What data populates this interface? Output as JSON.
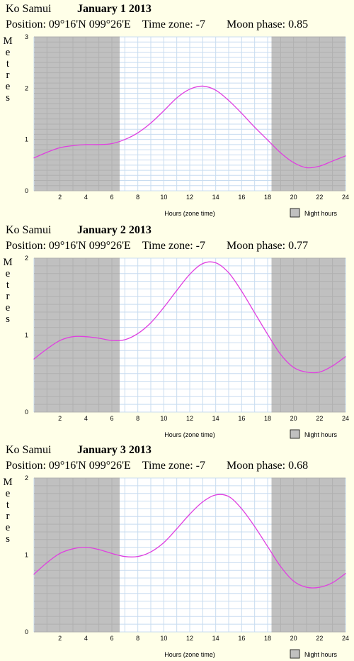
{
  "charts": [
    {
      "location": "Ko Samui",
      "date": "January 1 2013",
      "position": "Position: 09°16'N 099°26'E",
      "timezone": "Time zone: -7",
      "moon_phase": "Moon phase: 0.85",
      "ylabel": "Metres",
      "xlabel": "Hours (zone time)",
      "legend": "Night hours",
      "yticks": [
        "0",
        "1",
        "2",
        "3"
      ],
      "xticks": [
        "2",
        "4",
        "6",
        "8",
        "10",
        "12",
        "14",
        "16",
        "18",
        "20",
        "22",
        "24"
      ],
      "chart_data": {
        "type": "line",
        "ylim": [
          0,
          3
        ],
        "xlim": [
          0,
          24
        ],
        "night_hours": [
          [
            0,
            6.6
          ],
          [
            18.3,
            24
          ]
        ],
        "line_color": "#e040e0",
        "x": [
          0,
          1,
          2,
          3,
          4,
          5,
          6,
          7,
          8,
          9,
          10,
          11,
          12,
          13,
          14,
          15,
          16,
          17,
          18,
          19,
          20,
          21,
          22,
          23,
          24
        ],
        "values": [
          0.64,
          0.75,
          0.84,
          0.88,
          0.9,
          0.9,
          0.92,
          1.0,
          1.13,
          1.32,
          1.56,
          1.81,
          1.98,
          2.04,
          1.96,
          1.76,
          1.51,
          1.24,
          0.99,
          0.74,
          0.55,
          0.45,
          0.48,
          0.58,
          0.68
        ]
      }
    },
    {
      "location": "Ko Samui",
      "date": "January 2 2013",
      "position": "Position: 09°16'N 099°26'E",
      "timezone": "Time zone: -7",
      "moon_phase": "Moon phase: 0.77",
      "ylabel": "Metres",
      "xlabel": "Hours (zone time)",
      "legend": "Night hours",
      "yticks": [
        "0",
        "1",
        "2"
      ],
      "xticks": [
        "2",
        "4",
        "6",
        "8",
        "10",
        "12",
        "14",
        "16",
        "18",
        "20",
        "22",
        "24"
      ],
      "chart_data": {
        "type": "line",
        "ylim": [
          0,
          2
        ],
        "xlim": [
          0,
          24
        ],
        "night_hours": [
          [
            0,
            6.6
          ],
          [
            18.3,
            24
          ]
        ],
        "line_color": "#e040e0",
        "x": [
          0,
          1,
          2,
          3,
          4,
          5,
          6,
          7,
          8,
          9,
          10,
          11,
          12,
          13,
          14,
          15,
          16,
          17,
          18,
          19,
          20,
          21,
          22,
          23,
          24
        ],
        "values": [
          0.69,
          0.82,
          0.93,
          0.98,
          0.98,
          0.96,
          0.93,
          0.94,
          1.02,
          1.16,
          1.36,
          1.58,
          1.79,
          1.93,
          1.94,
          1.81,
          1.57,
          1.29,
          1.01,
          0.75,
          0.58,
          0.52,
          0.52,
          0.6,
          0.72
        ]
      }
    },
    {
      "location": "Ko Samui",
      "date": "January 3 2013",
      "position": "Position: 09°16'N 099°26'E",
      "timezone": "Time zone: -7",
      "moon_phase": "Moon phase: 0.68",
      "ylabel": "Metres",
      "xlabel": "Hours (zone time)",
      "legend": "Night hours",
      "yticks": [
        "0",
        "1",
        "2"
      ],
      "xticks": [
        "2",
        "4",
        "6",
        "8",
        "10",
        "12",
        "14",
        "16",
        "18",
        "20",
        "22",
        "24"
      ],
      "chart_data": {
        "type": "line",
        "ylim": [
          0,
          2
        ],
        "xlim": [
          0,
          24
        ],
        "night_hours": [
          [
            0,
            6.6
          ],
          [
            18.3,
            24
          ]
        ],
        "line_color": "#e040e0",
        "x": [
          0,
          1,
          2,
          3,
          4,
          5,
          6,
          7,
          8,
          9,
          10,
          11,
          12,
          13,
          14,
          15,
          16,
          17,
          18,
          19,
          20,
          21,
          22,
          23,
          24
        ],
        "values": [
          0.75,
          0.9,
          1.02,
          1.08,
          1.1,
          1.07,
          1.02,
          0.98,
          0.98,
          1.04,
          1.16,
          1.34,
          1.53,
          1.69,
          1.78,
          1.76,
          1.6,
          1.37,
          1.11,
          0.85,
          0.66,
          0.58,
          0.58,
          0.64,
          0.76
        ]
      }
    }
  ]
}
